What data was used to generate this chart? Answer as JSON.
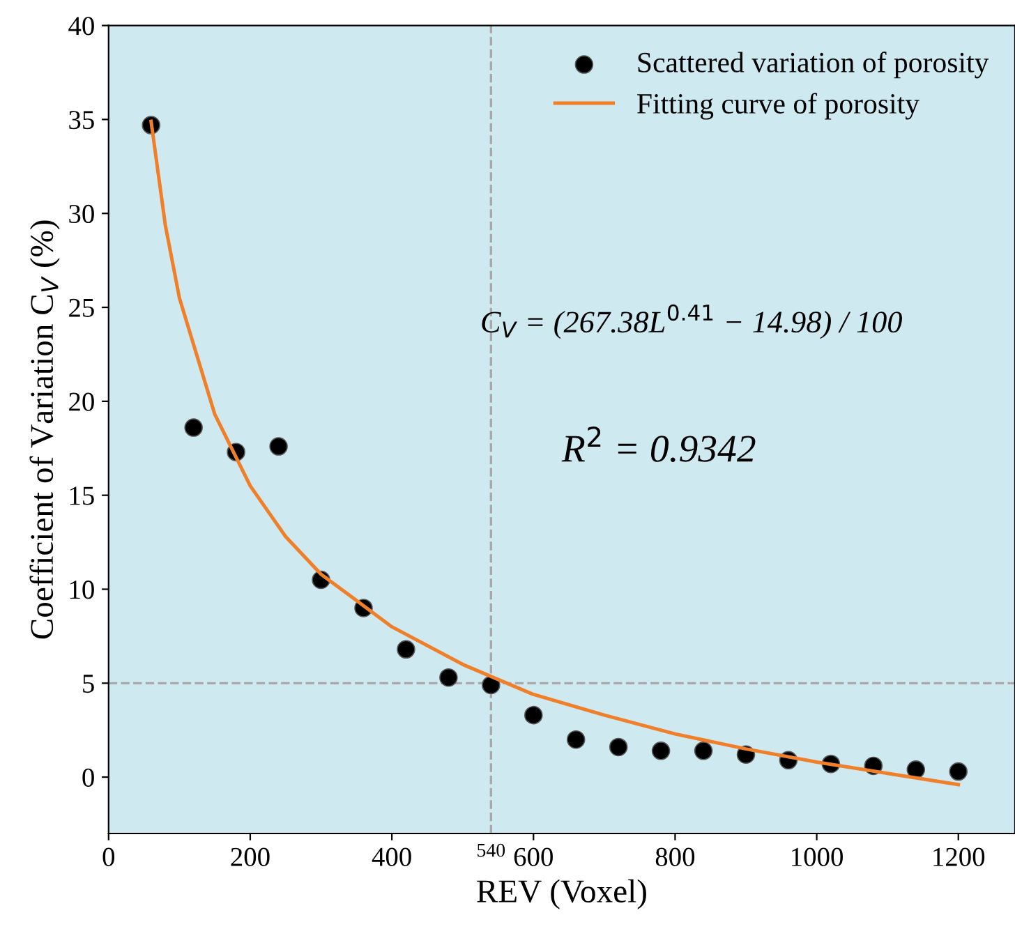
{
  "chart_data": {
    "type": "scatter",
    "xlabel": "REV (Voxel)",
    "ylabel": "Coefficient of Variation C$_{V}$ (%)",
    "xlim": [
      0,
      1280
    ],
    "ylim": [
      -3,
      40
    ],
    "xticks": [
      0,
      200,
      400,
      600,
      800,
      1000,
      1200
    ],
    "yticks": [
      0,
      5,
      10,
      15,
      20,
      25,
      30,
      35,
      40
    ],
    "grid": false,
    "legend": "top right",
    "series": [
      {
        "name": "Scattered variation of porosity",
        "color": "#000000",
        "marker": "circle",
        "x": [
          60,
          120,
          180,
          240,
          300,
          360,
          420,
          480,
          540,
          600,
          660,
          720,
          780,
          840,
          900,
          960,
          1020,
          1080,
          1140,
          1200
        ],
        "values": [
          34.7,
          18.6,
          17.3,
          17.6,
          10.5,
          9.0,
          6.8,
          5.3,
          4.9,
          3.3,
          2.0,
          1.6,
          1.4,
          1.4,
          1.2,
          0.9,
          0.7,
          0.6,
          0.4,
          0.3
        ]
      },
      {
        "name": "Fitting curve of porosity",
        "type": "line",
        "color": "#f07f2a",
        "marker": "none",
        "line_style": "solid",
        "x": [
          60,
          80,
          100,
          150,
          200,
          250,
          300,
          400,
          500,
          600,
          700,
          800,
          900,
          1000,
          1100,
          1200
        ],
        "values": [
          34.9,
          29.4,
          25.5,
          19.3,
          15.5,
          12.8,
          10.8,
          8.0,
          6.0,
          4.4,
          3.3,
          2.3,
          1.5,
          0.8,
          0.2,
          -0.4
        ]
      }
    ],
    "ref_lines": [
      {
        "axis": "x",
        "value": 540,
        "label": "540",
        "color": "#a8a8a8",
        "line_style": "dashed"
      },
      {
        "axis": "y",
        "value": 5,
        "color": "#a8a8a8",
        "line_style": "dashed"
      }
    ],
    "annotations": [
      "C$_{V}$ = (267.38L$^{0.41}$ − 14.98) / 100",
      "R$^{2}$ = 0.9342"
    ]
  }
}
